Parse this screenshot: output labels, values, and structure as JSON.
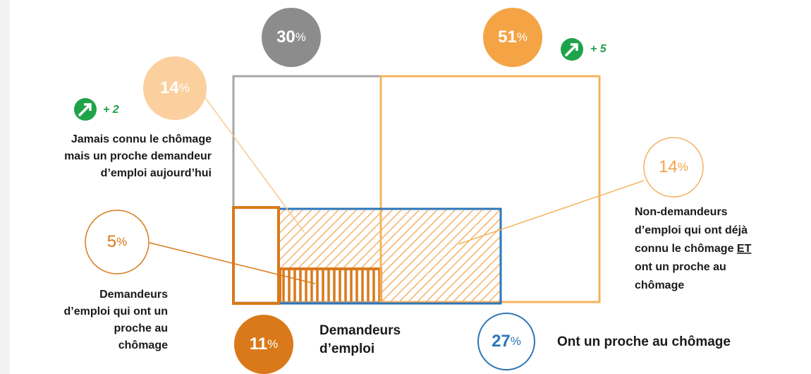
{
  "bubbles": {
    "no_contact": {
      "value": 30,
      "unit": "%"
    },
    "has_close": {
      "value": 51,
      "unit": "%",
      "trend": "+ 5"
    },
    "close_only": {
      "value": 14,
      "unit": "%",
      "trend": "+ 2"
    },
    "past_and_close": {
      "value": 14,
      "unit": "%"
    },
    "seekers_close": {
      "value": 5,
      "unit": "%"
    },
    "seekers": {
      "value": 11,
      "unit": "%"
    },
    "close_total": {
      "value": 27,
      "unit": "%"
    }
  },
  "labels": {
    "close_only": [
      "Jamais connu le chômage",
      "mais un proche demandeur",
      "d’emploi aujourd’hui"
    ],
    "past_and_close": {
      "lines": [
        "Non-demandeurs",
        "d’emploi qui ont déjà",
        "connu le chômage",
        "ont un proche au",
        "chômage"
      ],
      "emphasis": "ET"
    },
    "seekers_close": [
      "Demandeurs",
      "d’emploi qui ont un",
      "proche au",
      "chômage"
    ],
    "seekers": [
      "Demandeurs",
      "d’emploi"
    ],
    "close_total": "Ont un proche au chômage"
  }
}
